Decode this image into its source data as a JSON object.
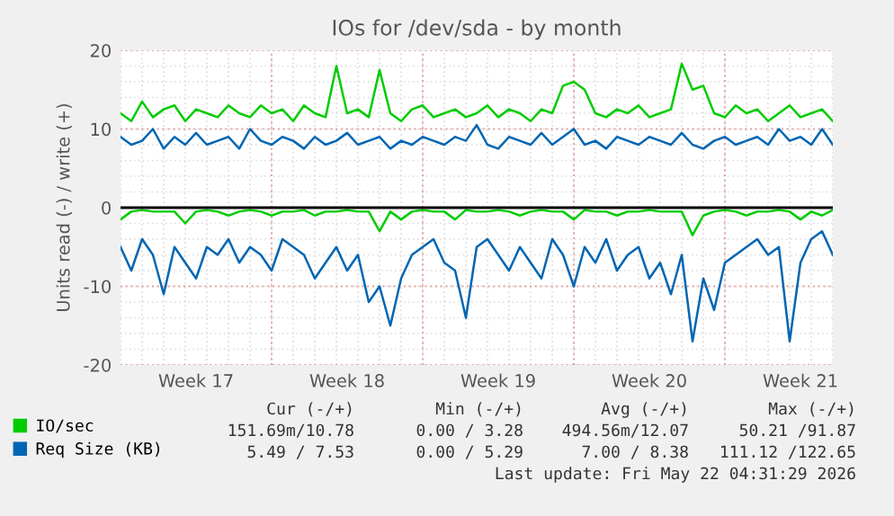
{
  "chart_data": {
    "type": "line",
    "title": "IOs for /dev/sda - by month",
    "ylabel": "Units read (-) / write (+)",
    "x": [
      "2026-04-20T00:00",
      "2026-04-20T12:00",
      "2026-04-21T00:00",
      "2026-04-21T12:00",
      "2026-04-22T00:00",
      "2026-04-22T12:00",
      "2026-04-23T00:00",
      "2026-04-23T12:00",
      "2026-04-24T00:00",
      "2026-04-24T12:00",
      "2026-04-25T00:00",
      "2026-04-25T12:00",
      "2026-04-26T00:00",
      "2026-04-26T12:00",
      "2026-04-27T00:00",
      "2026-04-27T12:00",
      "2026-04-28T00:00",
      "2026-04-28T12:00",
      "2026-04-29T00:00",
      "2026-04-29T12:00",
      "2026-04-30T00:00",
      "2026-04-30T12:00",
      "2026-05-01T00:00",
      "2026-05-01T12:00",
      "2026-05-02T00:00",
      "2026-05-02T12:00",
      "2026-05-03T00:00",
      "2026-05-03T12:00",
      "2026-05-04T00:00",
      "2026-05-04T12:00",
      "2026-05-05T00:00",
      "2026-05-05T12:00",
      "2026-05-06T00:00",
      "2026-05-06T12:00",
      "2026-05-07T00:00",
      "2026-05-07T12:00",
      "2026-05-08T00:00",
      "2026-05-08T12:00",
      "2026-05-09T00:00",
      "2026-05-09T12:00",
      "2026-05-10T00:00",
      "2026-05-10T12:00",
      "2026-05-11T00:00",
      "2026-05-11T12:00",
      "2026-05-12T00:00",
      "2026-05-12T12:00",
      "2026-05-13T00:00",
      "2026-05-13T12:00",
      "2026-05-14T00:00",
      "2026-05-14T12:00",
      "2026-05-15T00:00",
      "2026-05-15T12:00",
      "2026-05-16T00:00",
      "2026-05-16T12:00",
      "2026-05-17T00:00",
      "2026-05-17T12:00",
      "2026-05-18T00:00",
      "2026-05-18T12:00",
      "2026-05-19T00:00",
      "2026-05-19T12:00",
      "2026-05-20T00:00",
      "2026-05-20T12:00",
      "2026-05-21T00:00",
      "2026-05-21T12:00",
      "2026-05-22T00:00",
      "2026-05-22T12:00",
      "2026-05-23T00:00"
    ],
    "series": [
      {
        "name": "IO/sec",
        "color": "#00cc00",
        "values": [
          12,
          11,
          13.5,
          11.5,
          12.5,
          13,
          11,
          12.5,
          12,
          11.5,
          13,
          12,
          11.5,
          13,
          12,
          12.5,
          11,
          13,
          12,
          11.5,
          18,
          12,
          12.5,
          11.5,
          17.5,
          12,
          11,
          12.5,
          13,
          11.5,
          12,
          12.5,
          11.5,
          12,
          13,
          11.5,
          12.5,
          12,
          11,
          12.5,
          12,
          15.5,
          16,
          15,
          12,
          11.5,
          12.5,
          12,
          13,
          11.5,
          12,
          12.5,
          18.3,
          15,
          15.5,
          12,
          11.5,
          13,
          12,
          12.5,
          11,
          12,
          13,
          11.5,
          12,
          12.5,
          11
        ]
      },
      {
        "color": "#00cc00",
        "values": [
          -1.5,
          -0.5,
          -0.3,
          -0.5,
          -0.5,
          -0.5,
          -2,
          -0.5,
          -0.3,
          -0.5,
          -1,
          -0.5,
          -0.3,
          -0.5,
          -1,
          -0.5,
          -0.5,
          -0.3,
          -1,
          -0.5,
          -0.5,
          -0.3,
          -0.5,
          -0.5,
          -3,
          -0.5,
          -1.5,
          -0.5,
          -0.3,
          -0.5,
          -0.5,
          -1.5,
          -0.3,
          -0.5,
          -0.5,
          -0.3,
          -0.5,
          -1,
          -0.5,
          -0.3,
          -0.5,
          -0.5,
          -1.5,
          -0.3,
          -0.5,
          -0.5,
          -1,
          -0.5,
          -0.5,
          -0.3,
          -0.5,
          -0.5,
          -0.5,
          -3.5,
          -1,
          -0.5,
          -0.3,
          -0.5,
          -1,
          -0.5,
          -0.5,
          -0.3,
          -0.5,
          -1.5,
          -0.5,
          -1,
          -0.3
        ]
      },
      {
        "name": "Req Size (KB)",
        "color": "#0066b3",
        "values": [
          9,
          8,
          8.5,
          10,
          7.5,
          9,
          8,
          9.5,
          8,
          8.5,
          9,
          7.5,
          10,
          8.5,
          8,
          9,
          8.5,
          7.5,
          9,
          8,
          8.5,
          9.5,
          8,
          8.5,
          9,
          7.5,
          8.5,
          8,
          9,
          8.5,
          8,
          9,
          8.5,
          10.5,
          8,
          7.5,
          9,
          8.5,
          8,
          9.5,
          8,
          9,
          10,
          8,
          8.5,
          7.5,
          9,
          8.5,
          8,
          9,
          8.5,
          8,
          9.5,
          8,
          7.5,
          8.5,
          9,
          8,
          8.5,
          9,
          8,
          10,
          8.5,
          9,
          8,
          10,
          8
        ]
      },
      {
        "color": "#0066b3",
        "values": [
          -5,
          -8,
          -4,
          -6,
          -11,
          -5,
          -7,
          -9,
          -5,
          -6,
          -4,
          -7,
          -5,
          -6,
          -8,
          -4,
          -5,
          -6,
          -9,
          -7,
          -5,
          -8,
          -6,
          -12,
          -10,
          -15,
          -9,
          -6,
          -5,
          -4,
          -7,
          -8,
          -14,
          -5,
          -4,
          -6,
          -8,
          -5,
          -7,
          -9,
          -4,
          -6,
          -10,
          -5,
          -7,
          -4,
          -8,
          -6,
          -5,
          -9,
          -7,
          -11,
          -6,
          -17,
          -9,
          -13,
          -7,
          -6,
          -5,
          -4,
          -6,
          -5,
          -17,
          -7,
          -4,
          -3,
          -6
        ]
      }
    ],
    "xlim": [
      "2026-04-20",
      "2026-05-23"
    ],
    "xticks": [
      {
        "value": "2026-04-23T12:00",
        "label": "Week 17"
      },
      {
        "value": "2026-04-30T12:00",
        "label": "Week 18"
      },
      {
        "value": "2026-05-07T12:00",
        "label": "Week 19"
      },
      {
        "value": "2026-05-14T12:00",
        "label": "Week 20"
      },
      {
        "value": "2026-05-21T12:00",
        "label": "Week 21"
      }
    ],
    "ylim": [
      -20,
      20
    ],
    "yticks": [
      -20,
      -10,
      0,
      10,
      20
    ],
    "ref_lines": [
      {
        "axis": "y",
        "value": 0,
        "color": "#000000"
      }
    ],
    "grid": true,
    "legend": "bottom left",
    "marker": "none",
    "line_style": "solid",
    "annotations": [
      "Cur (-/+)",
      "Min (-/+)",
      "Avg (-/+)",
      "Max (-/+)",
      "151.69m/10.78",
      "0.00 / 3.28",
      "494.56m/12.07",
      "50.21 /91.87",
      "5.49 / 7.53",
      "0.00 / 5.29",
      "7.00 / 8.38",
      "111.12 /122.65",
      "Last update: Fri May 22 04:31:29 2026"
    ]
  }
}
